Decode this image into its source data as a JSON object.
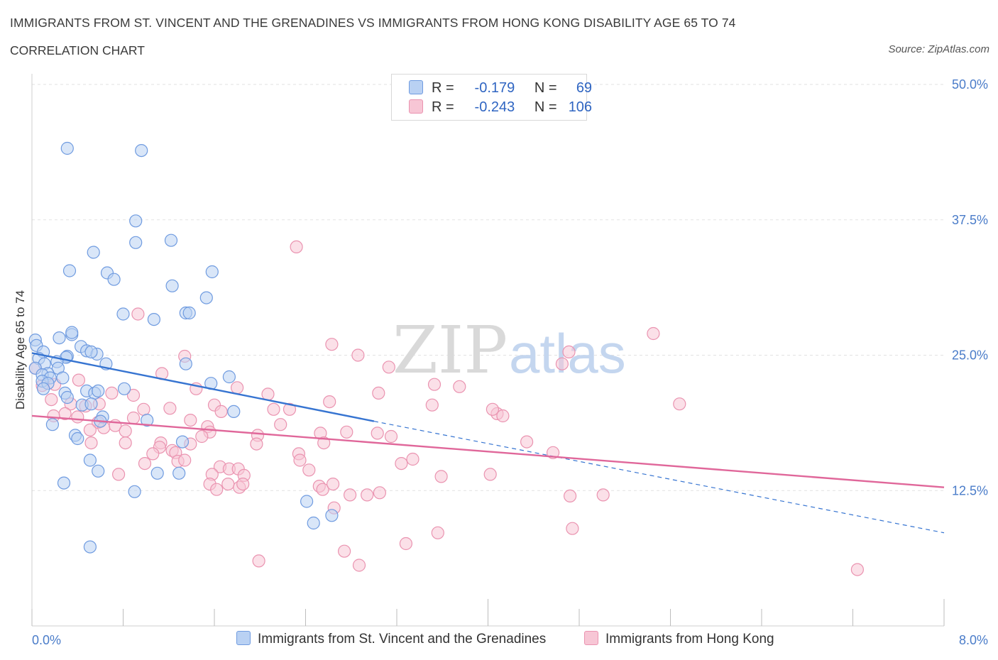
{
  "title": "IMMIGRANTS FROM ST. VINCENT AND THE GRENADINES VS IMMIGRANTS FROM HONG KONG DISABILITY AGE 65 TO 74",
  "subtitle": "CORRELATION CHART",
  "source": "Source: ZipAtlas.com",
  "watermark": {
    "zip": "ZIP",
    "atlas": "atlas"
  },
  "legend": {
    "r_label": "R =",
    "n_label": "N =",
    "series1": {
      "r": "-0.179",
      "n": "69"
    },
    "series2": {
      "r": "-0.243",
      "n": "106"
    }
  },
  "colors": {
    "series1_fill": "#b9d1f3",
    "series1_stroke": "#6f9be0",
    "series1_line": "#3674d1",
    "series2_fill": "#f7c6d5",
    "series2_stroke": "#ea93b0",
    "series2_line": "#e0679a",
    "tick_text": "#4a7cc9",
    "grid": "#e2e2e2"
  },
  "chart_data": {
    "type": "scatter",
    "title": "IMMIGRANTS FROM ST. VINCENT AND THE GRENADINES VS IMMIGRANTS FROM HONG KONG DISABILITY AGE 65 TO 74",
    "xlabel": "",
    "ylabel": "Disability Age 65 to 74",
    "xlim": [
      0,
      8
    ],
    "ylim": [
      0,
      50
    ],
    "x_unit": "%",
    "y_unit": "%",
    "x_tick_labels": [
      "0.0%",
      "8.0%"
    ],
    "y_ticks": [
      12.5,
      25.0,
      37.5,
      50.0
    ],
    "y_tick_labels": [
      "12.5%",
      "25.0%",
      "37.5%",
      "50.0%"
    ],
    "grid": true,
    "legend_position": "top-center",
    "series": [
      {
        "name": "Immigrants from St. Vincent and the Grenadines",
        "r": -0.179,
        "n": 69,
        "trend": {
          "x_start": 0.0,
          "y_start": 25.2,
          "x_solid_end": 3.0,
          "y_solid_end": 18.9,
          "x_end": 8.0,
          "y_end": 8.6
        },
        "points": [
          [
            0.31,
            44.1
          ],
          [
            0.96,
            43.9
          ],
          [
            0.91,
            37.4
          ],
          [
            0.91,
            35.4
          ],
          [
            1.22,
            35.6
          ],
          [
            0.54,
            34.5
          ],
          [
            0.33,
            32.8
          ],
          [
            0.66,
            32.6
          ],
          [
            0.72,
            32.0
          ],
          [
            1.58,
            32.7
          ],
          [
            1.23,
            31.4
          ],
          [
            1.53,
            30.3
          ],
          [
            0.8,
            28.8
          ],
          [
            1.35,
            28.9
          ],
          [
            1.38,
            28.9
          ],
          [
            1.07,
            28.3
          ],
          [
            0.03,
            26.4
          ],
          [
            0.35,
            26.9
          ],
          [
            0.24,
            26.6
          ],
          [
            0.35,
            27.1
          ],
          [
            0.04,
            25.9
          ],
          [
            0.1,
            25.3
          ],
          [
            0.43,
            25.8
          ],
          [
            0.48,
            25.4
          ],
          [
            0.57,
            25.1
          ],
          [
            0.52,
            25.3
          ],
          [
            0.31,
            24.9
          ],
          [
            0.3,
            24.8
          ],
          [
            0.06,
            24.7
          ],
          [
            0.22,
            24.4
          ],
          [
            0.11,
            24.2
          ],
          [
            0.65,
            24.2
          ],
          [
            0.03,
            23.8
          ],
          [
            0.23,
            23.8
          ],
          [
            0.14,
            23.3
          ],
          [
            0.09,
            23.2
          ],
          [
            0.16,
            22.9
          ],
          [
            0.27,
            22.9
          ],
          [
            0.09,
            22.6
          ],
          [
            0.14,
            22.4
          ],
          [
            1.35,
            24.2
          ],
          [
            1.73,
            23.0
          ],
          [
            0.1,
            21.9
          ],
          [
            0.48,
            21.7
          ],
          [
            0.81,
            21.9
          ],
          [
            0.29,
            21.5
          ],
          [
            1.57,
            22.4
          ],
          [
            0.31,
            21.1
          ],
          [
            0.55,
            21.5
          ],
          [
            0.58,
            21.7
          ],
          [
            0.44,
            20.4
          ],
          [
            0.52,
            20.5
          ],
          [
            0.62,
            19.3
          ],
          [
            1.77,
            19.8
          ],
          [
            0.6,
            18.9
          ],
          [
            0.18,
            18.6
          ],
          [
            1.01,
            19.0
          ],
          [
            0.38,
            17.6
          ],
          [
            0.4,
            17.3
          ],
          [
            1.32,
            17.0
          ],
          [
            0.51,
            15.3
          ],
          [
            0.58,
            14.3
          ],
          [
            1.1,
            14.1
          ],
          [
            1.29,
            14.1
          ],
          [
            0.28,
            13.2
          ],
          [
            0.9,
            12.4
          ],
          [
            2.41,
            11.5
          ],
          [
            2.63,
            10.2
          ],
          [
            2.47,
            9.5
          ],
          [
            0.51,
            7.3
          ]
        ]
      },
      {
        "name": "Immigrants from Hong Kong",
        "r": -0.243,
        "n": 106,
        "trend": {
          "x_start": 0.0,
          "y_start": 19.4,
          "x_end": 8.0,
          "y_end": 12.8
        },
        "points": [
          [
            2.32,
            35.0
          ],
          [
            0.93,
            28.8
          ],
          [
            5.45,
            27.0
          ],
          [
            2.63,
            26.0
          ],
          [
            1.34,
            24.9
          ],
          [
            2.86,
            25.0
          ],
          [
            4.71,
            25.3
          ],
          [
            3.13,
            23.9
          ],
          [
            4.65,
            24.2
          ],
          [
            1.14,
            23.3
          ],
          [
            0.41,
            22.7
          ],
          [
            0.03,
            23.8
          ],
          [
            0.09,
            22.2
          ],
          [
            0.2,
            22.3
          ],
          [
            1.44,
            21.9
          ],
          [
            3.53,
            22.3
          ],
          [
            3.75,
            22.1
          ],
          [
            1.8,
            22.0
          ],
          [
            0.7,
            21.5
          ],
          [
            3.04,
            21.5
          ],
          [
            0.89,
            21.3
          ],
          [
            2.07,
            21.4
          ],
          [
            2.61,
            20.7
          ],
          [
            3.51,
            20.4
          ],
          [
            5.68,
            20.5
          ],
          [
            0.17,
            20.9
          ],
          [
            0.34,
            20.5
          ],
          [
            0.47,
            20.3
          ],
          [
            0.59,
            20.5
          ],
          [
            1.6,
            20.4
          ],
          [
            2.12,
            20.0
          ],
          [
            2.26,
            20.0
          ],
          [
            0.98,
            20.0
          ],
          [
            1.21,
            20.1
          ],
          [
            1.66,
            19.8
          ],
          [
            0.29,
            19.6
          ],
          [
            0.19,
            19.4
          ],
          [
            0.4,
            19.3
          ],
          [
            0.89,
            19.2
          ],
          [
            1.39,
            19.0
          ],
          [
            4.08,
            19.6
          ],
          [
            4.13,
            19.4
          ],
          [
            0.58,
            18.8
          ],
          [
            0.63,
            18.3
          ],
          [
            0.73,
            18.5
          ],
          [
            1.54,
            18.4
          ],
          [
            0.51,
            18.1
          ],
          [
            0.82,
            18.0
          ],
          [
            2.18,
            18.6
          ],
          [
            1.56,
            17.9
          ],
          [
            1.49,
            17.5
          ],
          [
            1.98,
            17.6
          ],
          [
            2.53,
            17.8
          ],
          [
            2.76,
            17.9
          ],
          [
            3.03,
            17.8
          ],
          [
            3.15,
            17.5
          ],
          [
            2.56,
            16.9
          ],
          [
            1.13,
            16.9
          ],
          [
            0.82,
            16.9
          ],
          [
            0.52,
            16.9
          ],
          [
            1.39,
            16.8
          ],
          [
            1.12,
            16.5
          ],
          [
            1.97,
            16.8
          ],
          [
            1.23,
            16.2
          ],
          [
            1.26,
            16.0
          ],
          [
            1.06,
            15.9
          ],
          [
            2.34,
            15.9
          ],
          [
            2.35,
            15.3
          ],
          [
            0.99,
            15.0
          ],
          [
            1.28,
            15.2
          ],
          [
            1.34,
            15.3
          ],
          [
            4.34,
            17.0
          ],
          [
            4.57,
            16.0
          ],
          [
            3.34,
            15.4
          ],
          [
            3.24,
            15.0
          ],
          [
            1.65,
            14.7
          ],
          [
            1.73,
            14.5
          ],
          [
            1.81,
            14.5
          ],
          [
            1.58,
            14.0
          ],
          [
            1.86,
            13.9
          ],
          [
            2.43,
            14.4
          ],
          [
            3.59,
            13.8
          ],
          [
            0.76,
            14.0
          ],
          [
            4.02,
            14.0
          ],
          [
            1.56,
            13.1
          ],
          [
            1.72,
            13.1
          ],
          [
            1.82,
            12.8
          ],
          [
            1.85,
            13.1
          ],
          [
            2.52,
            12.9
          ],
          [
            2.55,
            12.6
          ],
          [
            2.64,
            13.1
          ],
          [
            1.62,
            12.6
          ],
          [
            2.79,
            12.1
          ],
          [
            2.94,
            12.1
          ],
          [
            3.05,
            12.3
          ],
          [
            4.72,
            12.0
          ],
          [
            5.01,
            12.1
          ],
          [
            2.65,
            10.9
          ],
          [
            3.56,
            8.6
          ],
          [
            4.74,
            9.0
          ],
          [
            3.28,
            7.6
          ],
          [
            2.74,
            6.9
          ],
          [
            1.99,
            6.0
          ],
          [
            2.87,
            5.6
          ],
          [
            7.24,
            5.2
          ],
          [
            4.04,
            20.0
          ]
        ]
      }
    ]
  }
}
